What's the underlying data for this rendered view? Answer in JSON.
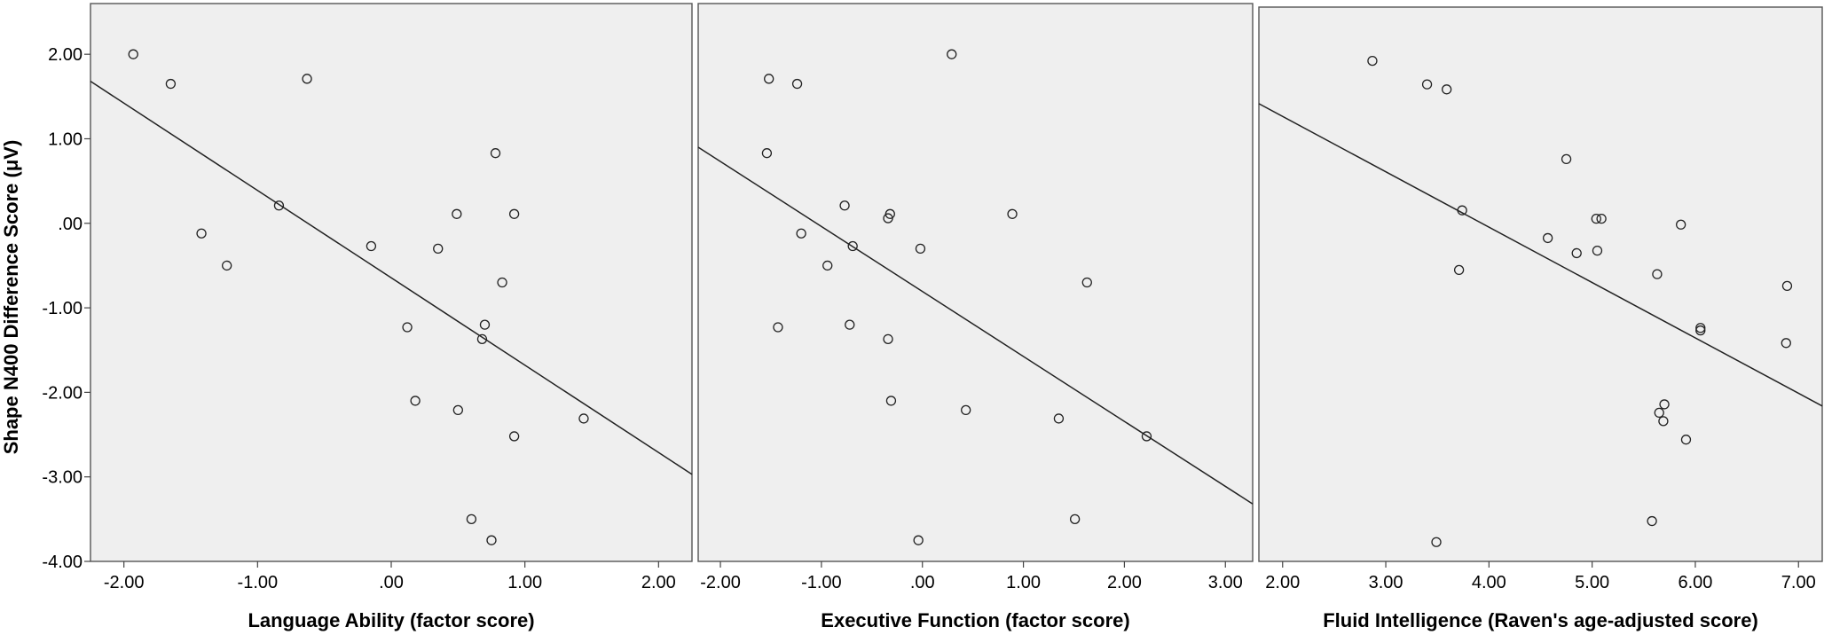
{
  "chart_data": [
    {
      "type": "scatter",
      "title": "",
      "xlabel": "Language Ability (factor score)",
      "ylabel": "Shape N400 Difference Score (μV)",
      "xlim": [
        -2.25,
        2.25
      ],
      "ylim": [
        -4.0,
        2.6
      ],
      "x_ticks": [
        -2.0,
        -1.0,
        0.0,
        1.0,
        2.0
      ],
      "x_tick_labels": [
        "-2.00",
        "-1.00",
        ".00",
        "1.00",
        "2.00"
      ],
      "y_ticks": [
        2.0,
        1.0,
        0.0,
        -1.0,
        -2.0,
        -3.0,
        -4.0
      ],
      "y_tick_labels": [
        "2.00",
        "1.00",
        ".00",
        "-1.00",
        "-2.00",
        "-3.00",
        "-4.00"
      ],
      "grid": false,
      "fit_line": {
        "x": [
          -2.25,
          2.25
        ],
        "y": [
          1.68,
          -2.97
        ]
      },
      "points": [
        {
          "x": -1.93,
          "y": 2.0
        },
        {
          "x": -1.65,
          "y": 1.65
        },
        {
          "x": -0.63,
          "y": 1.71
        },
        {
          "x": -1.42,
          "y": -0.12
        },
        {
          "x": -1.23,
          "y": -0.5
        },
        {
          "x": -0.84,
          "y": 0.21
        },
        {
          "x": -0.15,
          "y": -0.27
        },
        {
          "x": 0.12,
          "y": -1.23
        },
        {
          "x": 0.18,
          "y": -2.1
        },
        {
          "x": 0.35,
          "y": -0.3
        },
        {
          "x": 0.49,
          "y": 0.11
        },
        {
          "x": 0.5,
          "y": -2.21
        },
        {
          "x": 0.6,
          "y": -3.5
        },
        {
          "x": 0.68,
          "y": -1.37
        },
        {
          "x": 0.7,
          "y": -1.2
        },
        {
          "x": 0.75,
          "y": -3.75
        },
        {
          "x": 0.78,
          "y": 0.83
        },
        {
          "x": 0.83,
          "y": -0.7
        },
        {
          "x": 0.92,
          "y": 0.11
        },
        {
          "x": 0.92,
          "y": -2.52
        },
        {
          "x": 1.44,
          "y": -2.31
        }
      ]
    },
    {
      "type": "scatter",
      "title": "",
      "xlabel": "Executive Function (factor score)",
      "ylabel": "",
      "xlim": [
        -2.22,
        3.27
      ],
      "ylim": [
        -4.0,
        2.6
      ],
      "x_ticks": [
        -2.0,
        -1.0,
        0.0,
        1.0,
        2.0,
        3.0
      ],
      "x_tick_labels": [
        "-2.00",
        "-1.00",
        ".00",
        "1.00",
        "2.00",
        "3.00"
      ],
      "y_ticks": [],
      "y_tick_labels": [],
      "grid": false,
      "fit_line": {
        "x": [
          -2.22,
          3.27
        ],
        "y": [
          0.9,
          -3.32
        ]
      },
      "points": [
        {
          "x": -1.52,
          "y": 1.71
        },
        {
          "x": -1.24,
          "y": 1.65
        },
        {
          "x": -1.54,
          "y": 0.83
        },
        {
          "x": 0.29,
          "y": 2.0
        },
        {
          "x": -1.2,
          "y": -0.12
        },
        {
          "x": -0.77,
          "y": 0.21
        },
        {
          "x": -0.69,
          "y": -0.27
        },
        {
          "x": -0.32,
          "y": 0.11
        },
        {
          "x": -0.34,
          "y": 0.06
        },
        {
          "x": -0.02,
          "y": -0.3
        },
        {
          "x": -0.94,
          "y": -0.5
        },
        {
          "x": -1.43,
          "y": -1.23
        },
        {
          "x": -0.72,
          "y": -1.2
        },
        {
          "x": -0.34,
          "y": -1.37
        },
        {
          "x": -0.31,
          "y": -2.1
        },
        {
          "x": 0.43,
          "y": -2.21
        },
        {
          "x": -0.04,
          "y": -3.75
        },
        {
          "x": 0.89,
          "y": 0.11
        },
        {
          "x": 1.63,
          "y": -0.7
        },
        {
          "x": 1.35,
          "y": -2.31
        },
        {
          "x": 1.51,
          "y": -3.5
        },
        {
          "x": 2.22,
          "y": -2.52
        }
      ]
    },
    {
      "type": "scatter",
      "title": "",
      "xlabel": "Fluid Intelligence (Raven's age-adjusted score)",
      "ylabel": "",
      "xlim": [
        1.77,
        7.23
      ],
      "ylim": [
        -4.0,
        2.6
      ],
      "x_ticks": [
        2.0,
        3.0,
        4.0,
        5.0,
        6.0,
        7.0
      ],
      "x_tick_labels": [
        "2.00",
        "3.00",
        "4.00",
        "5.00",
        "6.00",
        "7.00"
      ],
      "y_ticks": [],
      "y_tick_labels": [],
      "grid": false,
      "fit_line": {
        "x": [
          1.77,
          7.23
        ],
        "y": [
          1.45,
          -2.15
        ]
      },
      "points": [
        {
          "x": 2.87,
          "y": 1.96
        },
        {
          "x": 3.4,
          "y": 1.68
        },
        {
          "x": 3.59,
          "y": 1.62
        },
        {
          "x": 3.74,
          "y": 0.18
        },
        {
          "x": 3.71,
          "y": -0.53
        },
        {
          "x": 3.49,
          "y": -3.77
        },
        {
          "x": 4.57,
          "y": -0.15
        },
        {
          "x": 4.75,
          "y": 0.79
        },
        {
          "x": 4.85,
          "y": -0.33
        },
        {
          "x": 5.04,
          "y": 0.08
        },
        {
          "x": 5.05,
          "y": -0.3
        },
        {
          "x": 5.09,
          "y": 0.08
        },
        {
          "x": 5.58,
          "y": -3.52
        },
        {
          "x": 5.63,
          "y": -0.58
        },
        {
          "x": 5.65,
          "y": -2.23
        },
        {
          "x": 5.69,
          "y": -2.33
        },
        {
          "x": 5.7,
          "y": -2.13
        },
        {
          "x": 5.86,
          "y": 0.01
        },
        {
          "x": 5.91,
          "y": -2.55
        },
        {
          "x": 6.05,
          "y": -1.22
        },
        {
          "x": 6.05,
          "y": -1.25
        },
        {
          "x": 6.89,
          "y": -0.72
        },
        {
          "x": 6.88,
          "y": -1.4
        }
      ]
    }
  ]
}
